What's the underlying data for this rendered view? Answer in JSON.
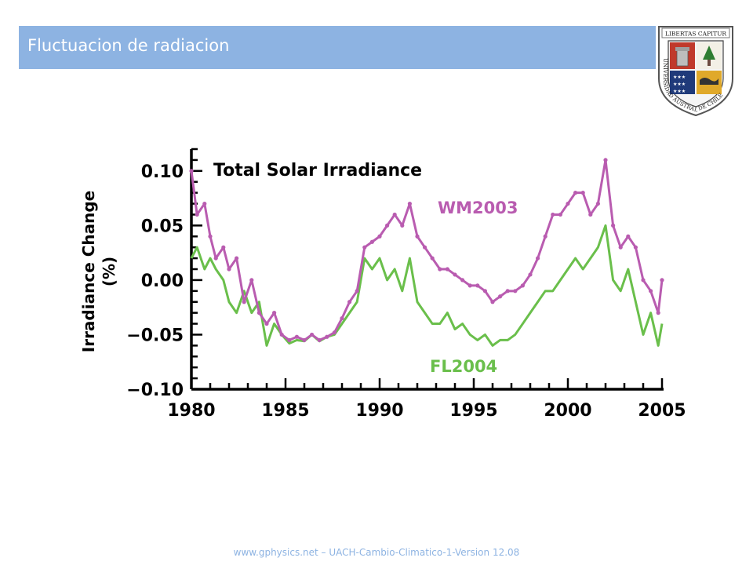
{
  "slide": {
    "title": "Fluctuacion de radiacion",
    "footer": "www.gphysics.net – UACH-Cambio-Climatico-1-Version 12.08",
    "title_bar_color": "#8db3e2"
  },
  "logo": {
    "banner_text": "LIBERTAS CAPITUR",
    "ring_text": "UNIVERSIDAD AUSTRAL DE CHILE"
  },
  "chart_data": {
    "type": "line",
    "title": "Total Solar Irradiance",
    "xlabel": "",
    "ylabel": "Irradiance Change",
    "ylabel_unit": "(%)",
    "xlim": [
      1980,
      2005
    ],
    "ylim": [
      -0.1,
      0.12
    ],
    "x_ticks": [
      1980,
      1985,
      1990,
      1995,
      2000,
      2005
    ],
    "x_tick_labels": [
      "1980",
      "1985",
      "1990",
      "1995",
      "2000",
      "2005"
    ],
    "y_ticks": [
      0.1,
      0.05,
      0.0,
      -0.05,
      -0.1
    ],
    "y_tick_labels": [
      "0.10",
      "0.05",
      "0.00",
      "−0.05",
      "−0.10"
    ],
    "legend": "inline labels",
    "grid": false,
    "series": [
      {
        "name": "WM2003",
        "color": "#b95cb0",
        "x": [
          1980.0,
          1980.3,
          1980.7,
          1981.0,
          1981.3,
          1981.7,
          1982.0,
          1982.4,
          1982.8,
          1983.2,
          1983.6,
          1984.0,
          1984.4,
          1984.8,
          1985.2,
          1985.6,
          1986.0,
          1986.4,
          1986.8,
          1987.2,
          1987.6,
          1988.0,
          1988.4,
          1988.8,
          1989.2,
          1989.6,
          1990.0,
          1990.4,
          1990.8,
          1991.2,
          1991.6,
          1992.0,
          1992.4,
          1992.8,
          1993.2,
          1993.6,
          1994.0,
          1994.4,
          1994.8,
          1995.2,
          1995.6,
          1996.0,
          1996.4,
          1996.8,
          1997.2,
          1997.6,
          1998.0,
          1998.4,
          1998.8,
          1999.2,
          1999.6,
          2000.0,
          2000.4,
          2000.8,
          2001.2,
          2001.6,
          2002.0,
          2002.4,
          2002.8,
          2003.2,
          2003.6,
          2004.0,
          2004.4,
          2004.8,
          2005.0
        ],
        "values": [
          0.1,
          0.06,
          0.07,
          0.04,
          0.02,
          0.03,
          0.01,
          0.02,
          -0.02,
          0.0,
          -0.03,
          -0.04,
          -0.03,
          -0.05,
          -0.055,
          -0.052,
          -0.055,
          -0.05,
          -0.055,
          -0.052,
          -0.048,
          -0.035,
          -0.02,
          -0.01,
          0.03,
          0.035,
          0.04,
          0.05,
          0.06,
          0.05,
          0.07,
          0.04,
          0.03,
          0.02,
          0.01,
          0.01,
          0.005,
          0.0,
          -0.005,
          -0.005,
          -0.01,
          -0.02,
          -0.015,
          -0.01,
          -0.01,
          -0.005,
          0.005,
          0.02,
          0.04,
          0.06,
          0.06,
          0.07,
          0.08,
          0.08,
          0.06,
          0.07,
          0.11,
          0.05,
          0.03,
          0.04,
          0.03,
          0.0,
          -0.01,
          -0.03,
          0.0
        ]
      },
      {
        "name": "FL2004",
        "color": "#6abf4b",
        "x": [
          1980.0,
          1980.3,
          1980.7,
          1981.0,
          1981.3,
          1981.7,
          1982.0,
          1982.4,
          1982.8,
          1983.2,
          1983.6,
          1984.0,
          1984.4,
          1984.8,
          1985.2,
          1985.6,
          1986.0,
          1986.4,
          1986.8,
          1987.2,
          1987.6,
          1988.0,
          1988.4,
          1988.8,
          1989.2,
          1989.6,
          1990.0,
          1990.4,
          1990.8,
          1991.2,
          1991.6,
          1992.0,
          1992.4,
          1992.8,
          1993.2,
          1993.6,
          1994.0,
          1994.4,
          1994.8,
          1995.2,
          1995.6,
          1996.0,
          1996.4,
          1996.8,
          1997.2,
          1997.6,
          1998.0,
          1998.4,
          1998.8,
          1999.2,
          1999.6,
          2000.0,
          2000.4,
          2000.8,
          2001.2,
          2001.6,
          2002.0,
          2002.4,
          2002.8,
          2003.2,
          2003.6,
          2004.0,
          2004.4,
          2004.8,
          2005.0
        ],
        "values": [
          0.02,
          0.03,
          0.01,
          0.02,
          0.01,
          0.0,
          -0.02,
          -0.03,
          -0.01,
          -0.03,
          -0.02,
          -0.06,
          -0.04,
          -0.05,
          -0.058,
          -0.055,
          -0.056,
          -0.05,
          -0.056,
          -0.052,
          -0.05,
          -0.04,
          -0.03,
          -0.02,
          0.02,
          0.01,
          0.02,
          0.0,
          0.01,
          -0.01,
          0.02,
          -0.02,
          -0.03,
          -0.04,
          -0.04,
          -0.03,
          -0.045,
          -0.04,
          -0.05,
          -0.055,
          -0.05,
          -0.06,
          -0.055,
          -0.055,
          -0.05,
          -0.04,
          -0.03,
          -0.02,
          -0.01,
          -0.01,
          0.0,
          0.01,
          0.02,
          0.01,
          0.02,
          0.03,
          0.05,
          0.0,
          -0.01,
          0.01,
          -0.02,
          -0.05,
          -0.03,
          -0.06,
          -0.04
        ]
      }
    ]
  }
}
